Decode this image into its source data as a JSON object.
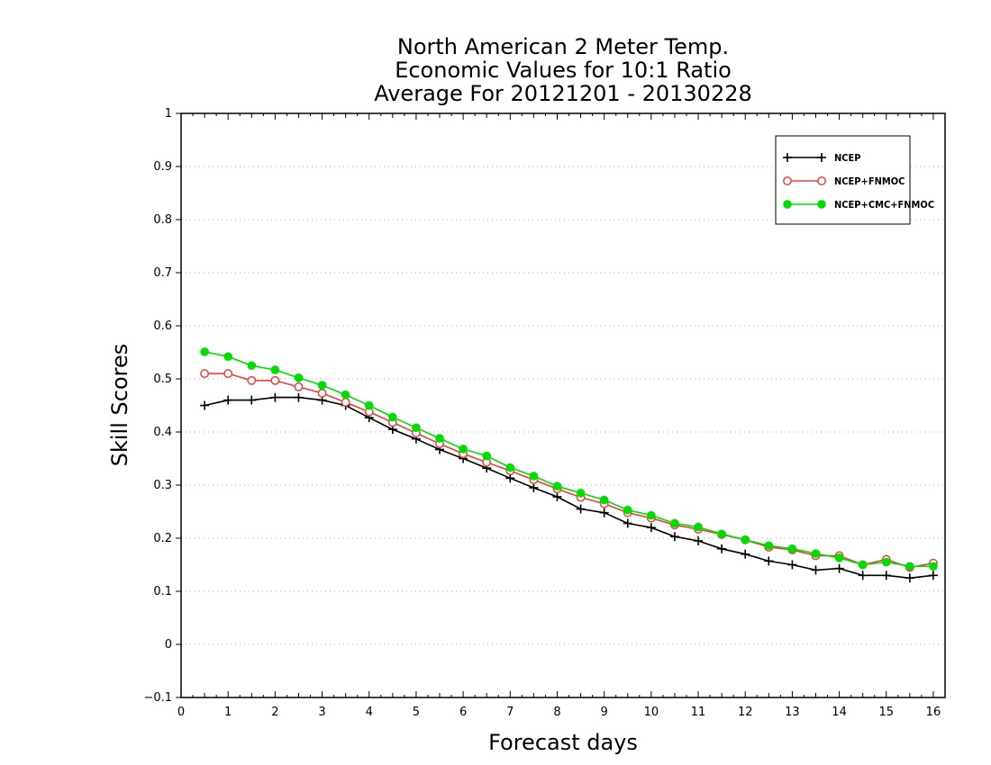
{
  "chart_data": {
    "type": "line",
    "title": [
      "North American 2 Meter Temp.",
      "Economic Values for 10:1 Ratio",
      "Average For 20121201 - 20130228"
    ],
    "xlabel": "Forecast days",
    "ylabel": "Skill Scores",
    "xlim": [
      0,
      16.25
    ],
    "ylim": [
      -0.1,
      1
    ],
    "xticks": [
      0,
      1,
      2,
      3,
      4,
      5,
      6,
      7,
      8,
      9,
      10,
      11,
      12,
      13,
      14,
      15,
      16
    ],
    "yticks": [
      -0.1,
      0,
      0.1,
      0.2,
      0.3,
      0.4,
      0.5,
      0.6,
      0.7,
      0.8,
      0.9,
      1
    ],
    "ytick_labels": [
      "−0.1",
      "0",
      "0.1",
      "0.2",
      "0.3",
      "0.4",
      "0.5",
      "0.6",
      "0.7",
      "0.8",
      "0.9",
      "1"
    ],
    "grid": "horizontal dotted",
    "legend_position": "top-right",
    "x": [
      0.5,
      1,
      1.5,
      2,
      2.5,
      3,
      3.5,
      4,
      4.5,
      5,
      5.5,
      6,
      6.5,
      7,
      7.5,
      8,
      8.5,
      9,
      9.5,
      10,
      10.5,
      11,
      11.5,
      12,
      12.5,
      13,
      13.5,
      14,
      14.5,
      15,
      15.5,
      16
    ],
    "series": [
      {
        "name": "NCEP",
        "color": "#000000",
        "marker": "plus",
        "values": [
          0.45,
          0.46,
          0.46,
          0.465,
          0.465,
          0.46,
          0.45,
          0.427,
          0.405,
          0.387,
          0.367,
          0.35,
          0.332,
          0.313,
          0.295,
          0.278,
          0.255,
          0.248,
          0.228,
          0.22,
          0.203,
          0.195,
          0.18,
          0.17,
          0.157,
          0.15,
          0.14,
          0.143,
          0.13,
          0.13,
          0.125,
          0.13
        ]
      },
      {
        "name": "NCEP+FNMOC",
        "color": "#e8403a",
        "marker": "open-circle",
        "values": [
          0.51,
          0.51,
          0.497,
          0.497,
          0.485,
          0.473,
          0.456,
          0.438,
          0.418,
          0.398,
          0.378,
          0.359,
          0.343,
          0.327,
          0.31,
          0.293,
          0.277,
          0.265,
          0.248,
          0.238,
          0.225,
          0.217,
          0.207,
          0.197,
          0.183,
          0.178,
          0.167,
          0.167,
          0.15,
          0.16,
          0.145,
          0.153
        ]
      },
      {
        "name": "NCEP+CMC+FNMOC",
        "color": "#00dd00",
        "marker": "filled-circle",
        "values": [
          0.551,
          0.542,
          0.525,
          0.517,
          0.502,
          0.488,
          0.47,
          0.45,
          0.428,
          0.408,
          0.388,
          0.368,
          0.355,
          0.333,
          0.317,
          0.298,
          0.285,
          0.272,
          0.253,
          0.243,
          0.228,
          0.221,
          0.208,
          0.197,
          0.186,
          0.18,
          0.171,
          0.163,
          0.15,
          0.155,
          0.147,
          0.147
        ]
      }
    ]
  }
}
